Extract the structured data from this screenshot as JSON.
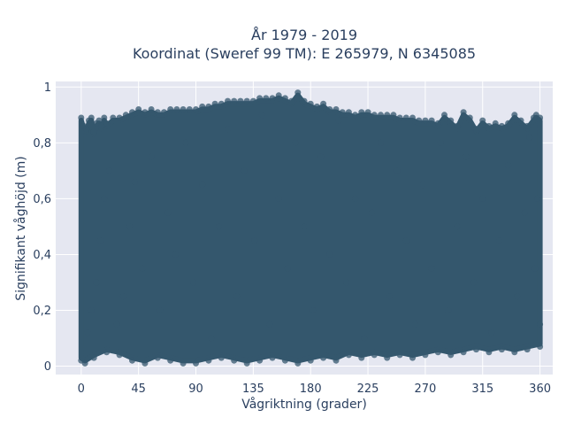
{
  "chart_data": {
    "type": "scatter",
    "title_lines": [
      "År 1979 - 2019",
      "Koordinat (Sweref 99 TM): E 265979, N 6345085"
    ],
    "xlabel": "Vågriktning (grader)",
    "ylabel": "Signifikant våghöjd (m)",
    "xlim": [
      -20,
      370
    ],
    "ylim": [
      -0.03,
      1.02
    ],
    "xticks": [
      0,
      45,
      90,
      135,
      180,
      225,
      270,
      315,
      360
    ],
    "xtick_labels": [
      "0",
      "45",
      "90",
      "135",
      "180",
      "225",
      "270",
      "315",
      "360"
    ],
    "yticks": [
      0,
      0.2,
      0.4,
      0.6,
      0.8,
      1
    ],
    "ytick_labels": [
      "0",
      "0,2",
      "0,4",
      "0,6",
      "0,8",
      "1"
    ],
    "grid": true,
    "colors": {
      "marker": "#34576d",
      "plot_bg": "#e5e7f1",
      "grid": "#ffffff",
      "text": "#2a3f5f"
    },
    "points": [
      [
        0,
        0.89
      ],
      [
        2,
        0.86
      ],
      [
        4,
        0.85
      ],
      [
        6,
        0.88
      ],
      [
        8,
        0.89
      ],
      [
        10,
        0.84
      ],
      [
        12,
        0.87
      ],
      [
        14,
        0.88
      ],
      [
        16,
        0.86
      ],
      [
        18,
        0.89
      ],
      [
        20,
        0.87
      ],
      [
        25,
        0.89
      ],
      [
        30,
        0.89
      ],
      [
        35,
        0.9
      ],
      [
        40,
        0.91
      ],
      [
        45,
        0.92
      ],
      [
        50,
        0.91
      ],
      [
        55,
        0.92
      ],
      [
        60,
        0.91
      ],
      [
        65,
        0.91
      ],
      [
        70,
        0.92
      ],
      [
        75,
        0.92
      ],
      [
        80,
        0.92
      ],
      [
        85,
        0.92
      ],
      [
        90,
        0.92
      ],
      [
        95,
        0.93
      ],
      [
        100,
        0.93
      ],
      [
        105,
        0.94
      ],
      [
        110,
        0.94
      ],
      [
        115,
        0.95
      ],
      [
        120,
        0.95
      ],
      [
        125,
        0.95
      ],
      [
        130,
        0.95
      ],
      [
        135,
        0.95
      ],
      [
        140,
        0.96
      ],
      [
        145,
        0.96
      ],
      [
        150,
        0.96
      ],
      [
        155,
        0.97
      ],
      [
        160,
        0.96
      ],
      [
        165,
        0.95
      ],
      [
        170,
        0.98
      ],
      [
        175,
        0.95
      ],
      [
        180,
        0.94
      ],
      [
        185,
        0.93
      ],
      [
        190,
        0.94
      ],
      [
        195,
        0.92
      ],
      [
        200,
        0.92
      ],
      [
        205,
        0.91
      ],
      [
        210,
        0.91
      ],
      [
        215,
        0.9
      ],
      [
        220,
        0.91
      ],
      [
        225,
        0.91
      ],
      [
        230,
        0.9
      ],
      [
        235,
        0.9
      ],
      [
        240,
        0.9
      ],
      [
        245,
        0.9
      ],
      [
        250,
        0.89
      ],
      [
        255,
        0.89
      ],
      [
        260,
        0.89
      ],
      [
        265,
        0.88
      ],
      [
        270,
        0.88
      ],
      [
        275,
        0.88
      ],
      [
        280,
        0.87
      ],
      [
        285,
        0.9
      ],
      [
        290,
        0.88
      ],
      [
        295,
        0.86
      ],
      [
        300,
        0.91
      ],
      [
        305,
        0.89
      ],
      [
        310,
        0.85
      ],
      [
        315,
        0.88
      ],
      [
        320,
        0.86
      ],
      [
        325,
        0.87
      ],
      [
        330,
        0.86
      ],
      [
        335,
        0.87
      ],
      [
        340,
        0.9
      ],
      [
        345,
        0.88
      ],
      [
        350,
        0.86
      ],
      [
        355,
        0.89
      ],
      [
        357,
        0.9
      ],
      [
        360,
        0.89
      ],
      [
        0,
        0.02
      ],
      [
        3,
        0.01
      ],
      [
        10,
        0.03
      ],
      [
        20,
        0.05
      ],
      [
        30,
        0.04
      ],
      [
        40,
        0.02
      ],
      [
        50,
        0.01
      ],
      [
        60,
        0.03
      ],
      [
        70,
        0.02
      ],
      [
        80,
        0.01
      ],
      [
        90,
        0.01
      ],
      [
        100,
        0.02
      ],
      [
        110,
        0.03
      ],
      [
        120,
        0.02
      ],
      [
        130,
        0.01
      ],
      [
        140,
        0.02
      ],
      [
        150,
        0.03
      ],
      [
        160,
        0.02
      ],
      [
        170,
        0.01
      ],
      [
        180,
        0.02
      ],
      [
        190,
        0.03
      ],
      [
        200,
        0.02
      ],
      [
        210,
        0.04
      ],
      [
        220,
        0.03
      ],
      [
        230,
        0.04
      ],
      [
        240,
        0.03
      ],
      [
        250,
        0.04
      ],
      [
        260,
        0.03
      ],
      [
        270,
        0.04
      ],
      [
        280,
        0.05
      ],
      [
        290,
        0.04
      ],
      [
        300,
        0.05
      ],
      [
        310,
        0.06
      ],
      [
        320,
        0.05
      ],
      [
        330,
        0.06
      ],
      [
        340,
        0.05
      ],
      [
        350,
        0.06
      ],
      [
        360,
        0.07
      ],
      [
        5,
        0.12
      ],
      [
        8,
        0.2
      ],
      [
        12,
        0.3
      ],
      [
        15,
        0.45
      ],
      [
        18,
        0.6
      ],
      [
        22,
        0.7
      ],
      [
        28,
        0.15
      ],
      [
        33,
        0.25
      ],
      [
        38,
        0.5
      ],
      [
        42,
        0.66
      ],
      [
        48,
        0.35
      ],
      [
        55,
        0.75
      ],
      [
        62,
        0.2
      ],
      [
        68,
        0.55
      ],
      [
        74,
        0.4
      ],
      [
        82,
        0.8
      ],
      [
        88,
        0.3
      ],
      [
        95,
        0.65
      ],
      [
        102,
        0.1
      ],
      [
        108,
        0.5
      ],
      [
        115,
        0.85
      ],
      [
        122,
        0.25
      ],
      [
        128,
        0.7
      ],
      [
        136,
        0.45
      ],
      [
        142,
        0.9
      ],
      [
        148,
        0.15
      ],
      [
        155,
        0.6
      ],
      [
        162,
        0.35
      ],
      [
        168,
        0.8
      ],
      [
        175,
        0.5
      ],
      [
        182,
        0.2
      ],
      [
        188,
        0.75
      ],
      [
        195,
        0.4
      ],
      [
        202,
        0.88
      ],
      [
        208,
        0.3
      ],
      [
        215,
        0.6
      ],
      [
        222,
        0.1
      ],
      [
        228,
        0.55
      ],
      [
        235,
        0.8
      ],
      [
        242,
        0.25
      ],
      [
        248,
        0.7
      ],
      [
        255,
        0.45
      ],
      [
        262,
        0.15
      ],
      [
        268,
        0.65
      ],
      [
        275,
        0.35
      ],
      [
        282,
        0.8
      ],
      [
        288,
        0.2
      ],
      [
        295,
        0.5
      ],
      [
        302,
        0.75
      ],
      [
        308,
        0.3
      ],
      [
        315,
        0.6
      ],
      [
        322,
        0.12
      ],
      [
        328,
        0.45
      ],
      [
        335,
        0.72
      ],
      [
        342,
        0.25
      ],
      [
        348,
        0.55
      ],
      [
        352,
        0.82
      ],
      [
        356,
        0.35
      ],
      [
        358,
        0.6
      ],
      [
        360,
        0.15
      ]
    ]
  }
}
